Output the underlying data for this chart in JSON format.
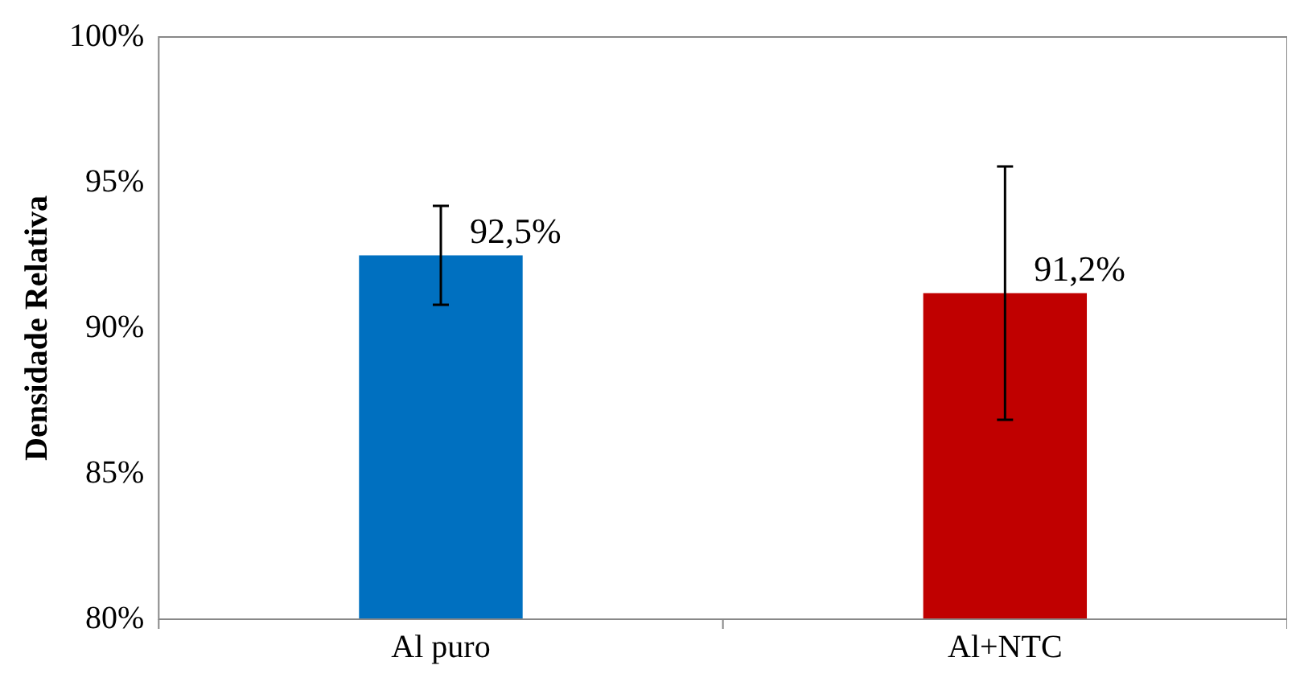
{
  "chart_data": {
    "type": "bar",
    "ylabel": "Densidade Relativa",
    "categories": [
      "Al puro",
      "Al+NTC"
    ],
    "values": [
      92.5,
      91.2
    ],
    "colors": [
      "#0070c0",
      "#c00000"
    ],
    "errors": [
      1.7,
      4.35
    ],
    "value_labels": [
      "92,5%",
      "91,2%"
    ],
    "ylim": [
      80,
      100
    ],
    "yticks": [
      {
        "value": 80,
        "label": "80%"
      },
      {
        "value": 85,
        "label": "85%"
      },
      {
        "value": 90,
        "label": "90%"
      },
      {
        "value": 95,
        "label": "95%"
      },
      {
        "value": 100,
        "label": "100%"
      }
    ],
    "grid": false,
    "legend": false
  }
}
